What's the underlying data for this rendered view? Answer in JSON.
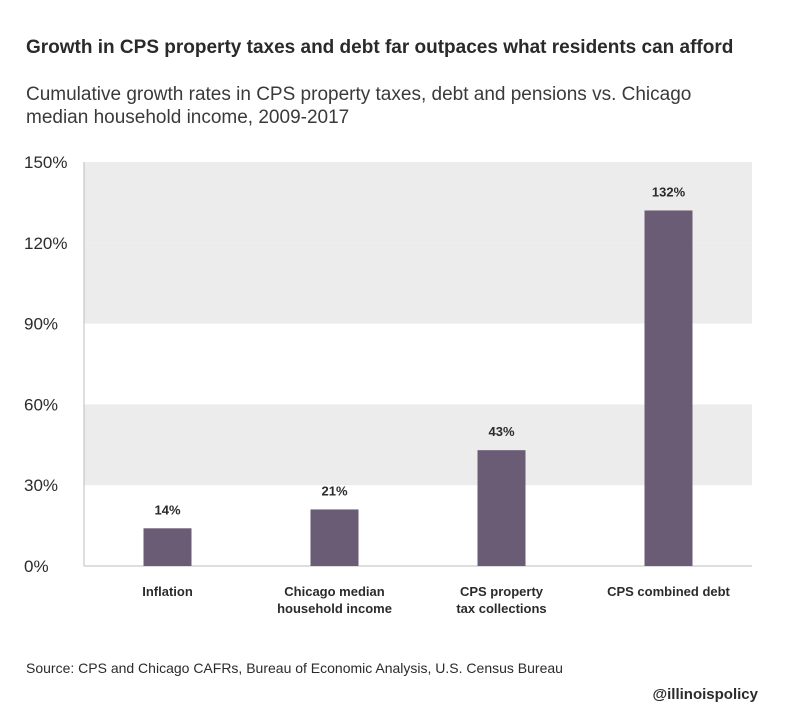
{
  "header": {
    "title": "Growth in CPS property taxes and debt far outpaces what residents can afford",
    "subtitle": "Cumulative growth rates in CPS property taxes, debt and pensions vs. Chicago median household income, 2009-2017"
  },
  "footer": {
    "source": "Source: CPS and Chicago CAFRs, Bureau of Economic Analysis, U.S. Census Bureau",
    "brand": "@illinoispolicy"
  },
  "colors": {
    "bar": "#6b5c76",
    "band": "#ececec",
    "axis": "#bdbdbd",
    "text": "#2b2b2b"
  },
  "chart_data": {
    "type": "bar",
    "title": "Growth in CPS property taxes and debt far outpaces what residents can afford",
    "subtitle": "Cumulative growth rates in CPS property taxes, debt and pensions vs. Chicago median household income, 2009-2017",
    "categories": [
      [
        "Inflation"
      ],
      [
        "Chicago median",
        "household income"
      ],
      [
        "CPS property",
        "tax collections"
      ],
      [
        "CPS combined debt"
      ]
    ],
    "values": [
      14,
      21,
      43,
      132
    ],
    "data_labels": [
      "14%",
      "21%",
      "43%",
      "132%"
    ],
    "ylim": [
      0,
      150
    ],
    "yticks": [
      0,
      30,
      60,
      90,
      120,
      150
    ],
    "ytick_labels": [
      "0%",
      "30%",
      "60%",
      "90%",
      "120%",
      "150%"
    ],
    "xlabel": "",
    "ylabel": "",
    "grid": "alternating horizontal bands",
    "legend": "none"
  }
}
